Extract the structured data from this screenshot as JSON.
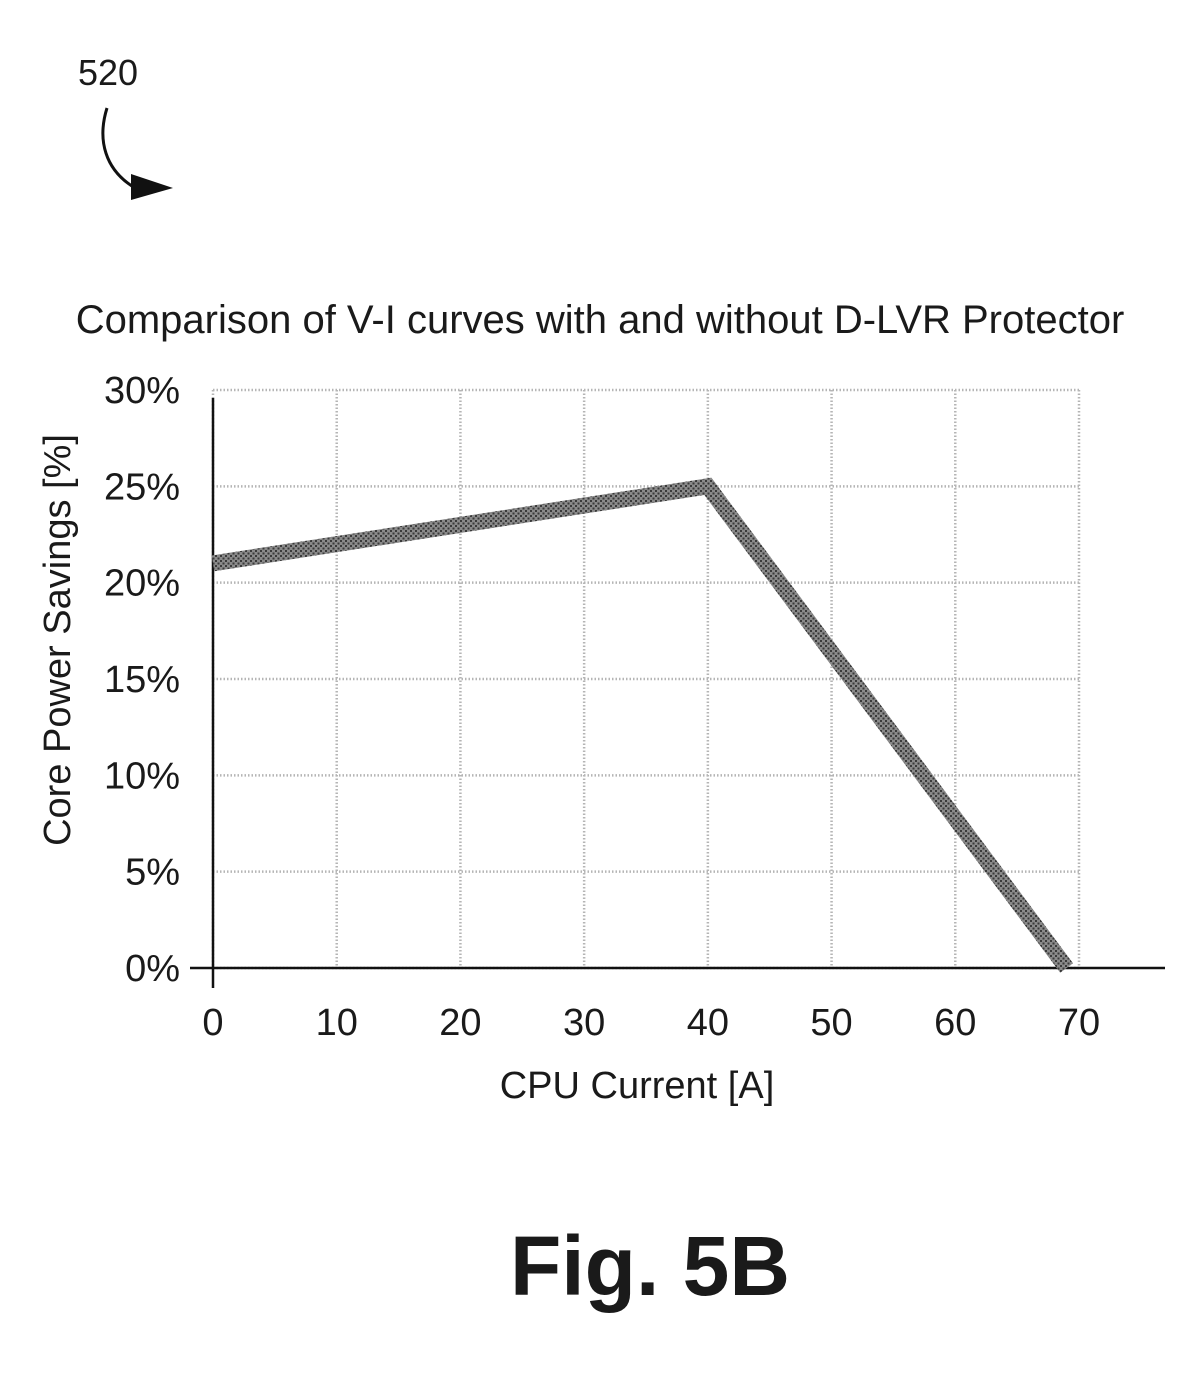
{
  "figure": {
    "reference_number": "520",
    "label": "Fig. 5B"
  },
  "colors": {
    "series": "#6e6e6e",
    "grid": "#b5b5b5",
    "axis": "#111111",
    "text": "#1a1a1a"
  },
  "chart_data": {
    "type": "line",
    "title": "Comparison of V-I curves with and without D-LVR Protector",
    "xlabel": "CPU Current [A]",
    "ylabel": "Core Power Savings [%]",
    "xlim": [
      0,
      70
    ],
    "ylim": [
      0,
      30
    ],
    "x_ticks": [
      0,
      10,
      20,
      30,
      40,
      50,
      60,
      70
    ],
    "x_tick_labels": [
      "0",
      "10",
      "20",
      "30",
      "40",
      "50",
      "60",
      "70"
    ],
    "y_ticks": [
      0,
      5,
      10,
      15,
      20,
      25,
      30
    ],
    "y_tick_labels": [
      "0%",
      "5%",
      "10%",
      "15%",
      "20%",
      "25%",
      "30%"
    ],
    "grid": true,
    "legend": "none",
    "series": [
      {
        "x": [
          0,
          40,
          69
        ],
        "y": [
          21,
          25,
          0
        ]
      }
    ]
  }
}
